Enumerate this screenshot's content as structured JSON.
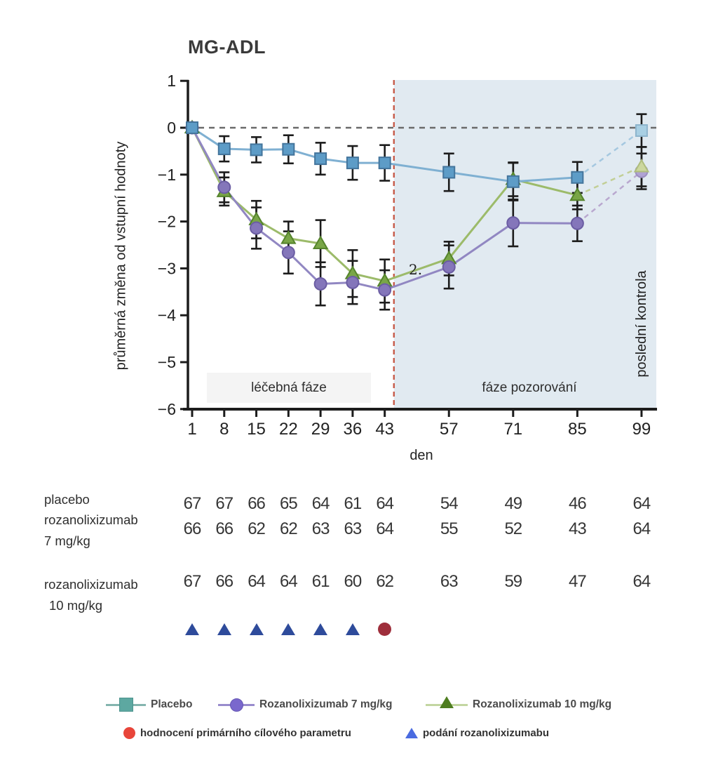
{
  "header": {
    "title": "MG-ADL"
  },
  "chart_data": {
    "type": "line",
    "title": "MG-ADL",
    "xlabel": "den",
    "ylabel": "průměrná změna od vstupní hodnoty",
    "x": [
      1,
      8,
      15,
      22,
      29,
      36,
      43,
      57,
      71,
      85,
      99
    ],
    "ylim": [
      -6,
      1
    ],
    "yticks": [
      1,
      0,
      -1,
      -2,
      -3,
      -4,
      -5,
      -6
    ],
    "zero_reference_line": true,
    "phase_boundary_day": 45,
    "phase_labels": {
      "treatment": "léčebná fáze",
      "observation": "fáze pozorování"
    },
    "last_visit_label": "poslední kontrola",
    "annotation": "2.",
    "colors": {
      "observation_shade": "#e1eaf1",
      "zero_line": "#6a6a6a",
      "boundary_line": "#c75b49",
      "axis": "#1c1c1c"
    },
    "series": [
      {
        "name": "Placebo",
        "marker": "square",
        "marker_fill": "#5d9cc7",
        "marker_stroke": "#44759c",
        "line": "#7fb0d2",
        "faded_line": "#a5c8e0",
        "faded_fill": "#a8cfe3",
        "faded_stroke": "#8db4cc",
        "values": [
          0,
          -0.45,
          -0.47,
          -0.46,
          -0.66,
          -0.75,
          -0.75,
          -0.95,
          -1.15,
          -1.06,
          -0.06
        ],
        "errors": [
          0,
          0.27,
          0.27,
          0.3,
          0.34,
          0.36,
          0.38,
          0.4,
          0.4,
          0.33,
          0.35
        ]
      },
      {
        "name": "Rozanolixizumab 7 mg/kg",
        "marker": "circle",
        "marker_fill": "#8476ba",
        "marker_stroke": "#6b5da3",
        "line": "#9187c2",
        "faded_line": "#b9a8cf",
        "faded_fill": "#b0a3d4",
        "faded_stroke": "#9c8fc0",
        "values": [
          0,
          -1.27,
          -2.14,
          -2.66,
          -3.33,
          -3.3,
          -3.46,
          -2.97,
          -2.03,
          -2.04,
          -0.93
        ],
        "errors": [
          0,
          0.32,
          0.44,
          0.45,
          0.46,
          0.46,
          0.42,
          0.46,
          0.5,
          0.38,
          0.38
        ]
      },
      {
        "name": "Rozanolixizumab 10 mg/kg",
        "marker": "triangle",
        "marker_fill": "#79a647",
        "marker_stroke": "#55842c",
        "line": "#9cbb6a",
        "faded_line": "#c2cf96",
        "faded_fill": "#ccd79e",
        "faded_stroke": "#aebd7d",
        "values": [
          0,
          -1.36,
          -1.96,
          -2.36,
          -2.47,
          -3.11,
          -3.27,
          -2.79,
          -1.1,
          -1.44,
          -0.83
        ],
        "errors": [
          0,
          0.3,
          0.4,
          0.36,
          0.5,
          0.5,
          0.46,
          0.36,
          0.36,
          0.3,
          0.42
        ]
      }
    ]
  },
  "table": {
    "rows": [
      {
        "label_lines": [
          "placebo"
        ],
        "counts": [
          67,
          67,
          66,
          65,
          64,
          61,
          64,
          54,
          49,
          46,
          64
        ]
      },
      {
        "label_lines": [
          "rozanolixizumab",
          "7 mg/kg"
        ],
        "counts": [
          66,
          66,
          62,
          62,
          63,
          63,
          64,
          55,
          52,
          43,
          64
        ]
      },
      {
        "label_lines": [
          "rozanolixizumab",
          "10 mg/kg"
        ],
        "counts": [
          67,
          66,
          64,
          64,
          61,
          60,
          62,
          63,
          59,
          47,
          64
        ]
      }
    ],
    "dose_marker_days": [
      1,
      8,
      15,
      22,
      29,
      36
    ],
    "dose_marker_color": "#2e4b9b",
    "assessment_marker_day": 43,
    "assessment_marker_color": "#9e2e3b"
  },
  "legend": {
    "series": [
      {
        "label": "Placebo",
        "marker": "square",
        "marker_color": "#5da8a1",
        "marker_stroke": "#4c938d",
        "line_color": "#84b5af"
      },
      {
        "label": "Rozanolixizumab 7 mg/kg",
        "marker": "circle",
        "marker_color": "#7a68cd",
        "marker_stroke": "#6456b3",
        "line_color": "#998ccd"
      },
      {
        "label": "Rozanolixizumab 10 mg/kg",
        "marker": "triangle",
        "marker_color": "#4e7d1f",
        "line_color": "#c3d6a2"
      }
    ],
    "markers": {
      "assessment": {
        "label": "hodnocení primárního cílového parametru",
        "color": "#e8453a",
        "shape": "circle"
      },
      "dosing": {
        "label": "podání rozanolixizumabu",
        "color": "#4a6be0",
        "shape": "triangle"
      }
    }
  }
}
